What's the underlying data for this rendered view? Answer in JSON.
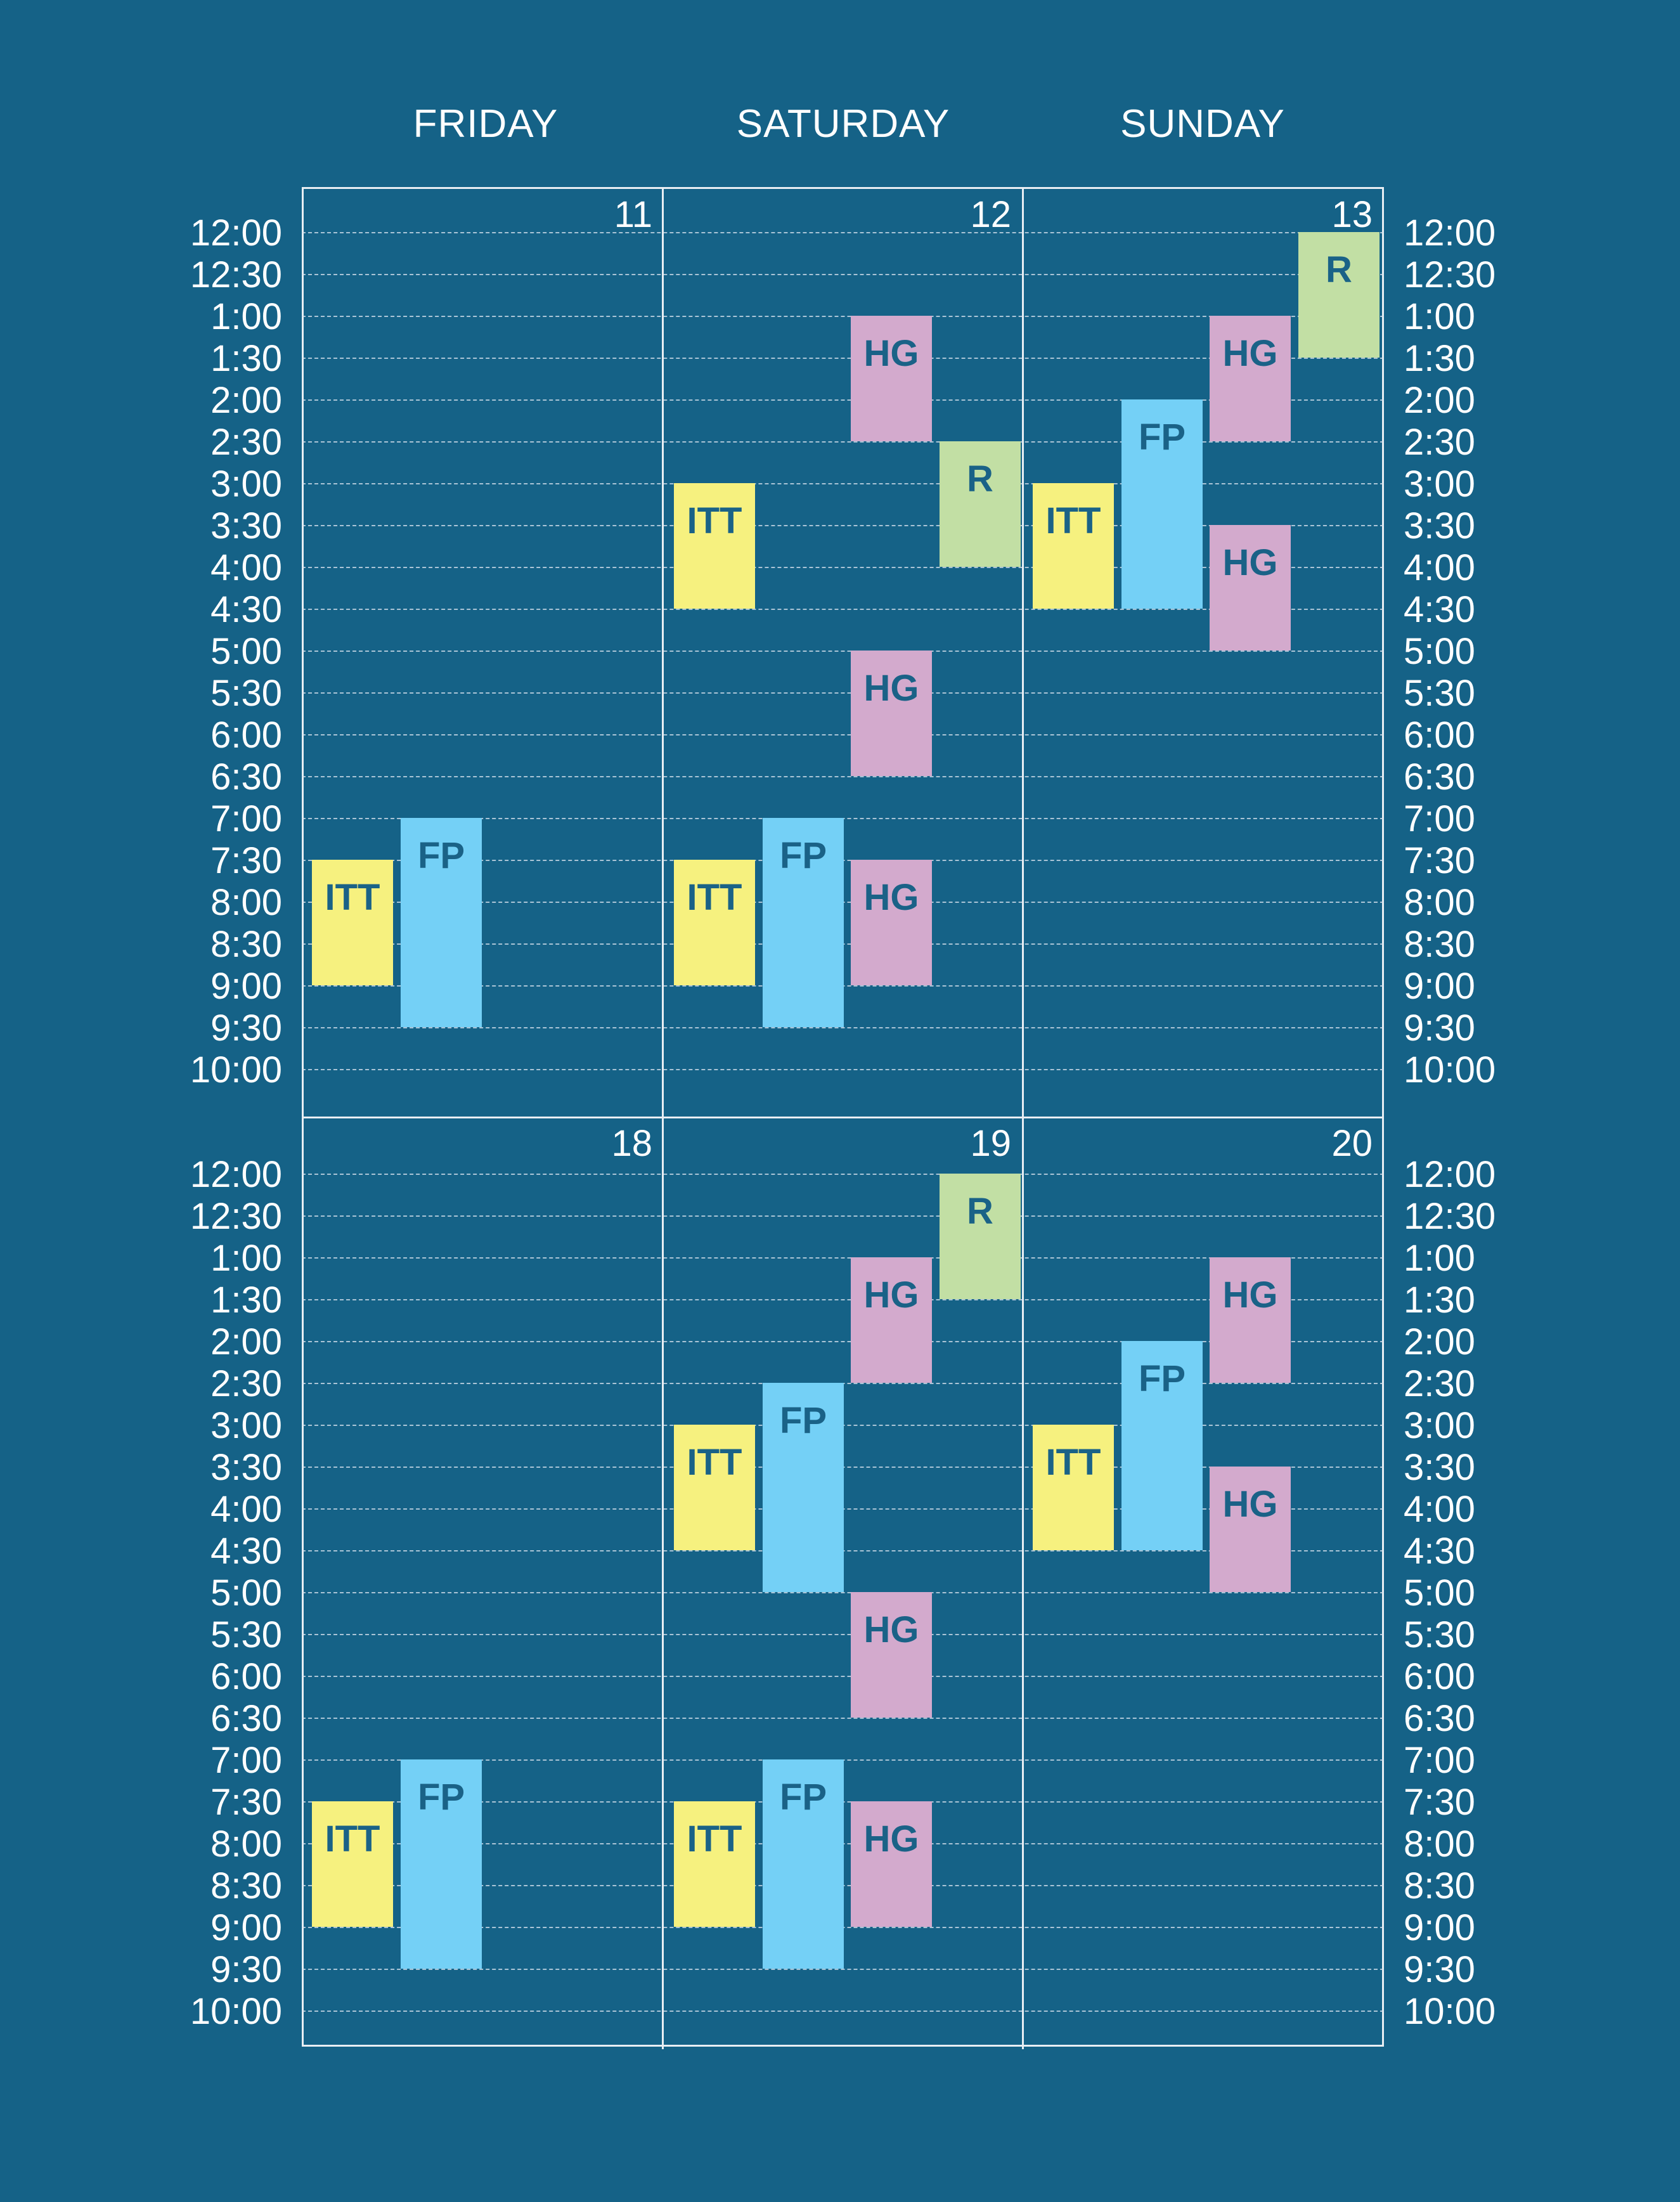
{
  "days": [
    "FRIDAY",
    "SATURDAY",
    "SUNDAY"
  ],
  "times": [
    "12:00",
    "12:30",
    "1:00",
    "1:30",
    "2:00",
    "2:30",
    "3:00",
    "3:30",
    "4:00",
    "4:30",
    "5:00",
    "5:30",
    "6:00",
    "6:30",
    "7:00",
    "7:30",
    "8:00",
    "8:30",
    "9:00",
    "9:30",
    "10:00"
  ],
  "weeks": [
    {
      "dates": [
        "11",
        "12",
        "13"
      ],
      "events": [
        {
          "day": 0,
          "label": "ITT",
          "start": 7.5,
          "end": 9.0,
          "lane": 0
        },
        {
          "day": 0,
          "label": "FP",
          "start": 7.0,
          "end": 9.5,
          "lane": 1
        },
        {
          "day": 1,
          "label": "HG",
          "start": 1.0,
          "end": 2.5,
          "lane": 2
        },
        {
          "day": 1,
          "label": "R",
          "start": 2.5,
          "end": 4.0,
          "lane": 3
        },
        {
          "day": 1,
          "label": "ITT",
          "start": 3.0,
          "end": 4.5,
          "lane": 0
        },
        {
          "day": 1,
          "label": "HG",
          "start": 5.0,
          "end": 6.5,
          "lane": 2
        },
        {
          "day": 1,
          "label": "ITT",
          "start": 7.5,
          "end": 9.0,
          "lane": 0
        },
        {
          "day": 1,
          "label": "FP",
          "start": 7.0,
          "end": 9.5,
          "lane": 1
        },
        {
          "day": 1,
          "label": "HG",
          "start": 7.5,
          "end": 9.0,
          "lane": 2
        },
        {
          "day": 2,
          "label": "R",
          "start": 0.0,
          "end": 1.5,
          "lane": 3
        },
        {
          "day": 2,
          "label": "HG",
          "start": 1.0,
          "end": 2.5,
          "lane": 2
        },
        {
          "day": 2,
          "label": "FP",
          "start": 2.0,
          "end": 4.5,
          "lane": 1
        },
        {
          "day": 2,
          "label": "ITT",
          "start": 3.0,
          "end": 4.5,
          "lane": 0
        },
        {
          "day": 2,
          "label": "HG",
          "start": 3.5,
          "end": 5.0,
          "lane": 2
        }
      ]
    },
    {
      "dates": [
        "18",
        "19",
        "20"
      ],
      "events": [
        {
          "day": 0,
          "label": "ITT",
          "start": 7.5,
          "end": 9.0,
          "lane": 0
        },
        {
          "day": 0,
          "label": "FP",
          "start": 7.0,
          "end": 9.5,
          "lane": 1
        },
        {
          "day": 1,
          "label": "R",
          "start": 0.0,
          "end": 1.5,
          "lane": 3
        },
        {
          "day": 1,
          "label": "HG",
          "start": 1.0,
          "end": 2.5,
          "lane": 2
        },
        {
          "day": 1,
          "label": "FP",
          "start": 2.5,
          "end": 5.0,
          "lane": 1
        },
        {
          "day": 1,
          "label": "ITT",
          "start": 3.0,
          "end": 4.5,
          "lane": 0
        },
        {
          "day": 1,
          "label": "HG",
          "start": 5.0,
          "end": 6.5,
          "lane": 2
        },
        {
          "day": 1,
          "label": "ITT",
          "start": 7.5,
          "end": 9.0,
          "lane": 0
        },
        {
          "day": 1,
          "label": "FP",
          "start": 7.0,
          "end": 9.5,
          "lane": 1
        },
        {
          "day": 1,
          "label": "HG",
          "start": 7.5,
          "end": 9.0,
          "lane": 2
        },
        {
          "day": 2,
          "label": "HG",
          "start": 1.0,
          "end": 2.5,
          "lane": 2
        },
        {
          "day": 2,
          "label": "FP",
          "start": 2.0,
          "end": 4.5,
          "lane": 1
        },
        {
          "day": 2,
          "label": "ITT",
          "start": 3.0,
          "end": 4.5,
          "lane": 0
        },
        {
          "day": 2,
          "label": "HG",
          "start": 3.5,
          "end": 5.0,
          "lane": 2
        }
      ]
    }
  ],
  "colors": {
    "background": "#156287",
    "ITT": "#f6f17f",
    "FP": "#74d0f6",
    "HG": "#d3aacd",
    "R": "#c2dfa4",
    "event_text": "#1a6287"
  }
}
